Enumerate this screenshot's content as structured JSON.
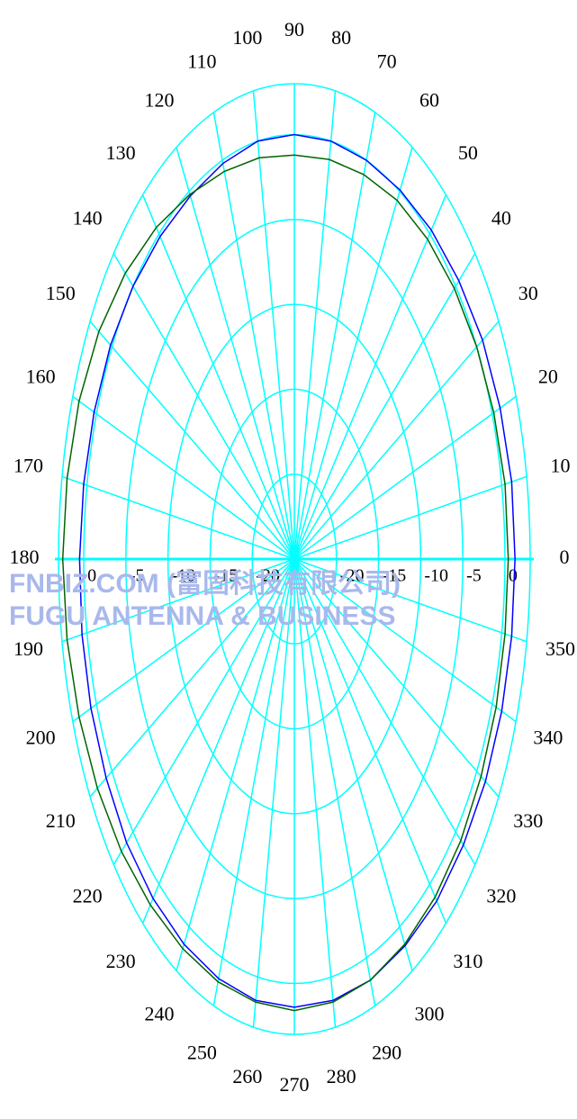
{
  "chart_data": {
    "type": "polar",
    "watermark": [
      "FNBIZ.COM (富固科技有限公司)",
      "FUGU ANTENNA & BUSINESS"
    ],
    "theta": [
      0,
      10,
      20,
      30,
      40,
      50,
      60,
      70,
      80,
      90,
      100,
      110,
      120,
      130,
      140,
      150,
      160,
      170,
      180,
      190,
      200,
      210,
      220,
      230,
      240,
      250,
      260,
      270,
      280,
      290,
      300,
      310,
      320,
      330,
      340,
      350
    ],
    "thetaticks": [
      0,
      10,
      20,
      30,
      40,
      50,
      60,
      70,
      80,
      90,
      100,
      110,
      120,
      130,
      140,
      150,
      160,
      170,
      180,
      190,
      200,
      210,
      220,
      230,
      240,
      250,
      260,
      270,
      280,
      290,
      300,
      310,
      320,
      330,
      340,
      350
    ],
    "rlim": [
      -25,
      3
    ],
    "rticks": [
      0,
      -5,
      -10,
      -15,
      -20
    ],
    "grid_color": "#00ffff",
    "series": [
      {
        "color": "#0000ff",
        "values": [
          1.2,
          1.2,
          1.0,
          0.8,
          0.5,
          0.3,
          0.1,
          0,
          0,
          0,
          0,
          -0.2,
          -0.3,
          -0.2,
          0,
          0.2,
          0.3,
          0.4,
          0.5,
          0.6,
          0.7,
          0.8,
          1.0,
          1.1,
          1.2,
          1.3,
          1.4,
          1.4,
          1.4,
          1.4,
          1.3,
          1.3,
          1.2,
          1.2,
          1.2,
          1.2
        ]
      },
      {
        "color": "#006400",
        "values": [
          0.4,
          0.4,
          0.2,
          0,
          -0.2,
          -0.4,
          -0.6,
          -0.9,
          -1.1,
          -1.2,
          -1.0,
          -0.7,
          -0.2,
          0.5,
          1.2,
          1.8,
          2.2,
          2.4,
          2.5,
          2.4,
          2.2,
          2.0,
          1.8,
          1.6,
          1.5,
          1.5,
          1.5,
          1.6,
          1.5,
          1.4,
          1.2,
          1.0,
          0.8,
          0.6,
          0.5,
          0.4
        ]
      }
    ]
  }
}
